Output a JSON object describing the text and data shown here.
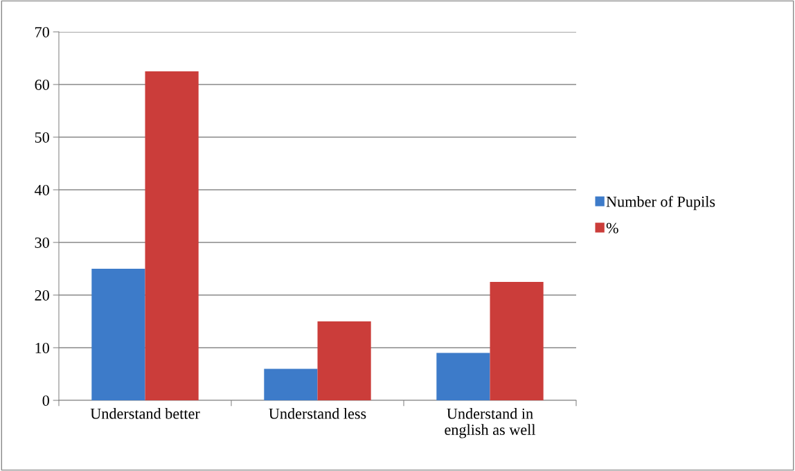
{
  "chart_data": {
    "type": "bar",
    "categories": [
      "Understand better",
      "Understand less",
      "Understand in\nenglish as well"
    ],
    "series": [
      {
        "name": "Number of Pupils",
        "color": "#3d7bc9",
        "values": [
          25,
          6,
          9
        ]
      },
      {
        "name": "%",
        "color": "#cb3d3a",
        "values": [
          62.5,
          15,
          22.5
        ]
      }
    ],
    "ylim": [
      0,
      70
    ],
    "yticks": [
      0,
      10,
      20,
      30,
      40,
      50,
      60,
      70
    ],
    "grid": "y",
    "legend": "right"
  }
}
